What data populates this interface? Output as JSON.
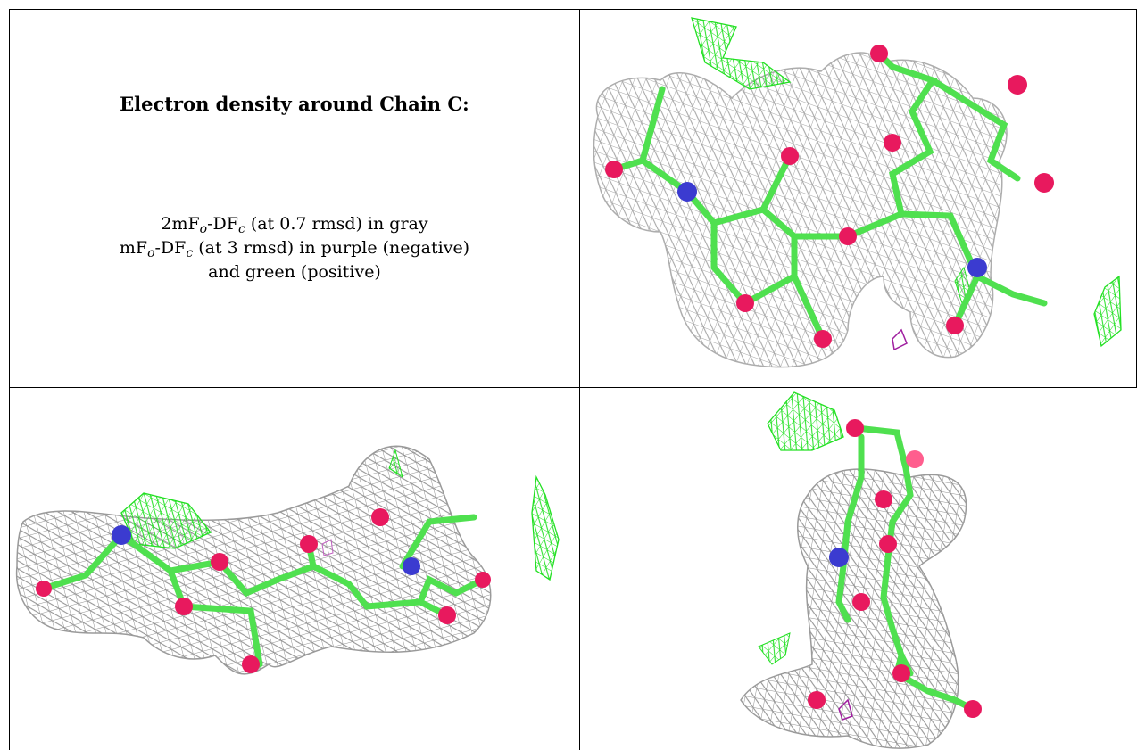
{
  "caption": {
    "title": "Electron density around Chain C:",
    "line1": {
      "pre": "2mF",
      "sub1": "o",
      "mid": "-DF",
      "sub2": "c",
      "post": " (at 0.7 rmsd) in gray"
    },
    "line2": {
      "pre": "mF",
      "sub1": "o",
      "mid": "-DF",
      "sub2": "c",
      "post": " (at 3 rmsd) in purple (negative)"
    },
    "line3": "and green (positive)"
  },
  "colors": {
    "mesh_2fofc": "#9a9a9a",
    "mesh_positive": "#22e022",
    "mesh_negative": "#a020a0",
    "carbon": "#4fe04f",
    "oxygen": "#e8195e",
    "nitrogen": "#3b3bd0"
  },
  "panels": [
    {
      "name": "view-1",
      "icon": "density-view-top-right"
    },
    {
      "name": "view-2",
      "icon": "density-view-bottom-left"
    },
    {
      "name": "view-3",
      "icon": "density-view-bottom-right"
    }
  ]
}
